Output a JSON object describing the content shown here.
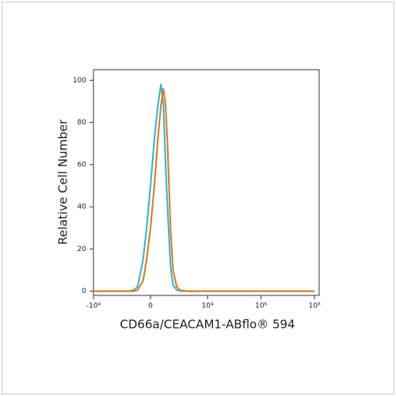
{
  "chart_data": {
    "type": "line",
    "xlabel": "CD66a/CEACAM1-ABflo® 594",
    "ylabel": "Relative Cell Number",
    "xscale": "biexponential",
    "x": [
      -10000,
      -1000,
      -500,
      -300,
      -200,
      -100,
      -50,
      0,
      50,
      100,
      150,
      200,
      250,
      300,
      400,
      500,
      700,
      1000,
      2000,
      10000,
      1000000,
      100000000
    ],
    "series": [
      {
        "color": "#22b8d8",
        "values": [
          0,
          0,
          0,
          0.5,
          2,
          15,
          30,
          50,
          72,
          88,
          98,
          88,
          60,
          40,
          12,
          3,
          0.5,
          0,
          0,
          0,
          0,
          0
        ]
      },
      {
        "color": "#e8731a",
        "values": [
          0,
          0,
          0,
          0,
          0.5,
          5,
          15,
          30,
          50,
          72,
          88,
          96,
          88,
          70,
          30,
          10,
          2,
          0.3,
          0,
          0,
          0,
          0
        ]
      }
    ],
    "xlim": [
      -10000,
      150000000
    ],
    "xticks": [
      {
        "value": -10000,
        "label": "-10⁴"
      },
      0,
      {
        "value": 10000,
        "label": "10⁴"
      },
      {
        "value": 1000000,
        "label": "10⁶"
      },
      {
        "value": 100000000,
        "label": "10⁸"
      }
    ],
    "ylim": [
      -2,
      105
    ],
    "yticks": [
      0,
      20,
      40,
      60,
      80,
      100
    ]
  }
}
